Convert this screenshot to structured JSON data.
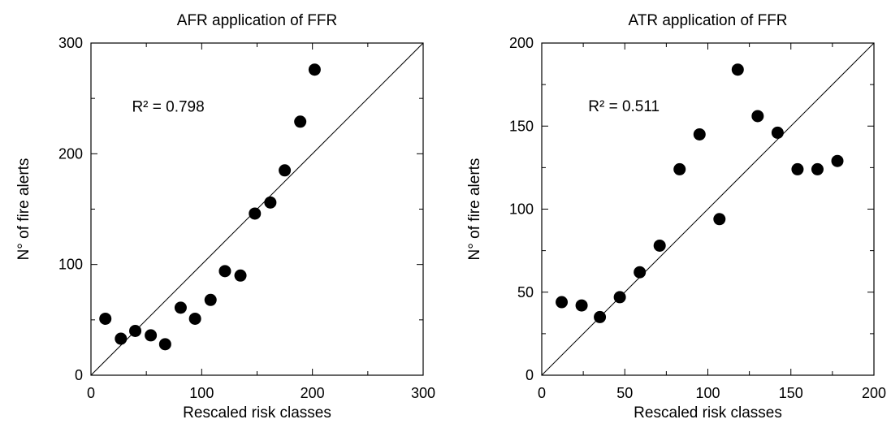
{
  "chart_data": [
    {
      "type": "scatter",
      "title": "AFR application of FFR",
      "xlabel": "Rescaled risk classes",
      "ylabel": "N° of fire alerts",
      "xlim": [
        0,
        300
      ],
      "ylim": [
        0,
        300
      ],
      "xticks": [
        0,
        100,
        200,
        300
      ],
      "yticks": [
        0,
        100,
        200,
        300
      ],
      "annotation": {
        "text": "R² = 0.798",
        "x": 37,
        "y": 238
      },
      "reference_line": "y = x",
      "points": [
        {
          "x": 13,
          "y": 51
        },
        {
          "x": 27,
          "y": 33
        },
        {
          "x": 40,
          "y": 40
        },
        {
          "x": 54,
          "y": 36
        },
        {
          "x": 67,
          "y": 28
        },
        {
          "x": 81,
          "y": 61
        },
        {
          "x": 94,
          "y": 51
        },
        {
          "x": 108,
          "y": 68
        },
        {
          "x": 121,
          "y": 94
        },
        {
          "x": 135,
          "y": 90
        },
        {
          "x": 148,
          "y": 146
        },
        {
          "x": 162,
          "y": 156
        },
        {
          "x": 175,
          "y": 185
        },
        {
          "x": 189,
          "y": 229
        },
        {
          "x": 202,
          "y": 276
        }
      ]
    },
    {
      "type": "scatter",
      "title": "ATR application of FFR",
      "xlabel": "Rescaled risk classes",
      "ylabel": "N° of fire alerts",
      "xlim": [
        0,
        200
      ],
      "ylim": [
        0,
        200
      ],
      "xticks": [
        0,
        50,
        100,
        150,
        200
      ],
      "yticks": [
        0,
        50,
        100,
        150,
        200
      ],
      "annotation": {
        "text": "R² = 0.511",
        "x": 28,
        "y": 159
      },
      "reference_line": "y = x",
      "points": [
        {
          "x": 12,
          "y": 44
        },
        {
          "x": 24,
          "y": 42
        },
        {
          "x": 35,
          "y": 35
        },
        {
          "x": 47,
          "y": 47
        },
        {
          "x": 59,
          "y": 62
        },
        {
          "x": 71,
          "y": 78
        },
        {
          "x": 83,
          "y": 124
        },
        {
          "x": 95,
          "y": 145
        },
        {
          "x": 107,
          "y": 94
        },
        {
          "x": 118,
          "y": 184
        },
        {
          "x": 130,
          "y": 156
        },
        {
          "x": 142,
          "y": 146
        },
        {
          "x": 154,
          "y": 124
        },
        {
          "x": 166,
          "y": 124
        },
        {
          "x": 178,
          "y": 129
        }
      ]
    }
  ]
}
